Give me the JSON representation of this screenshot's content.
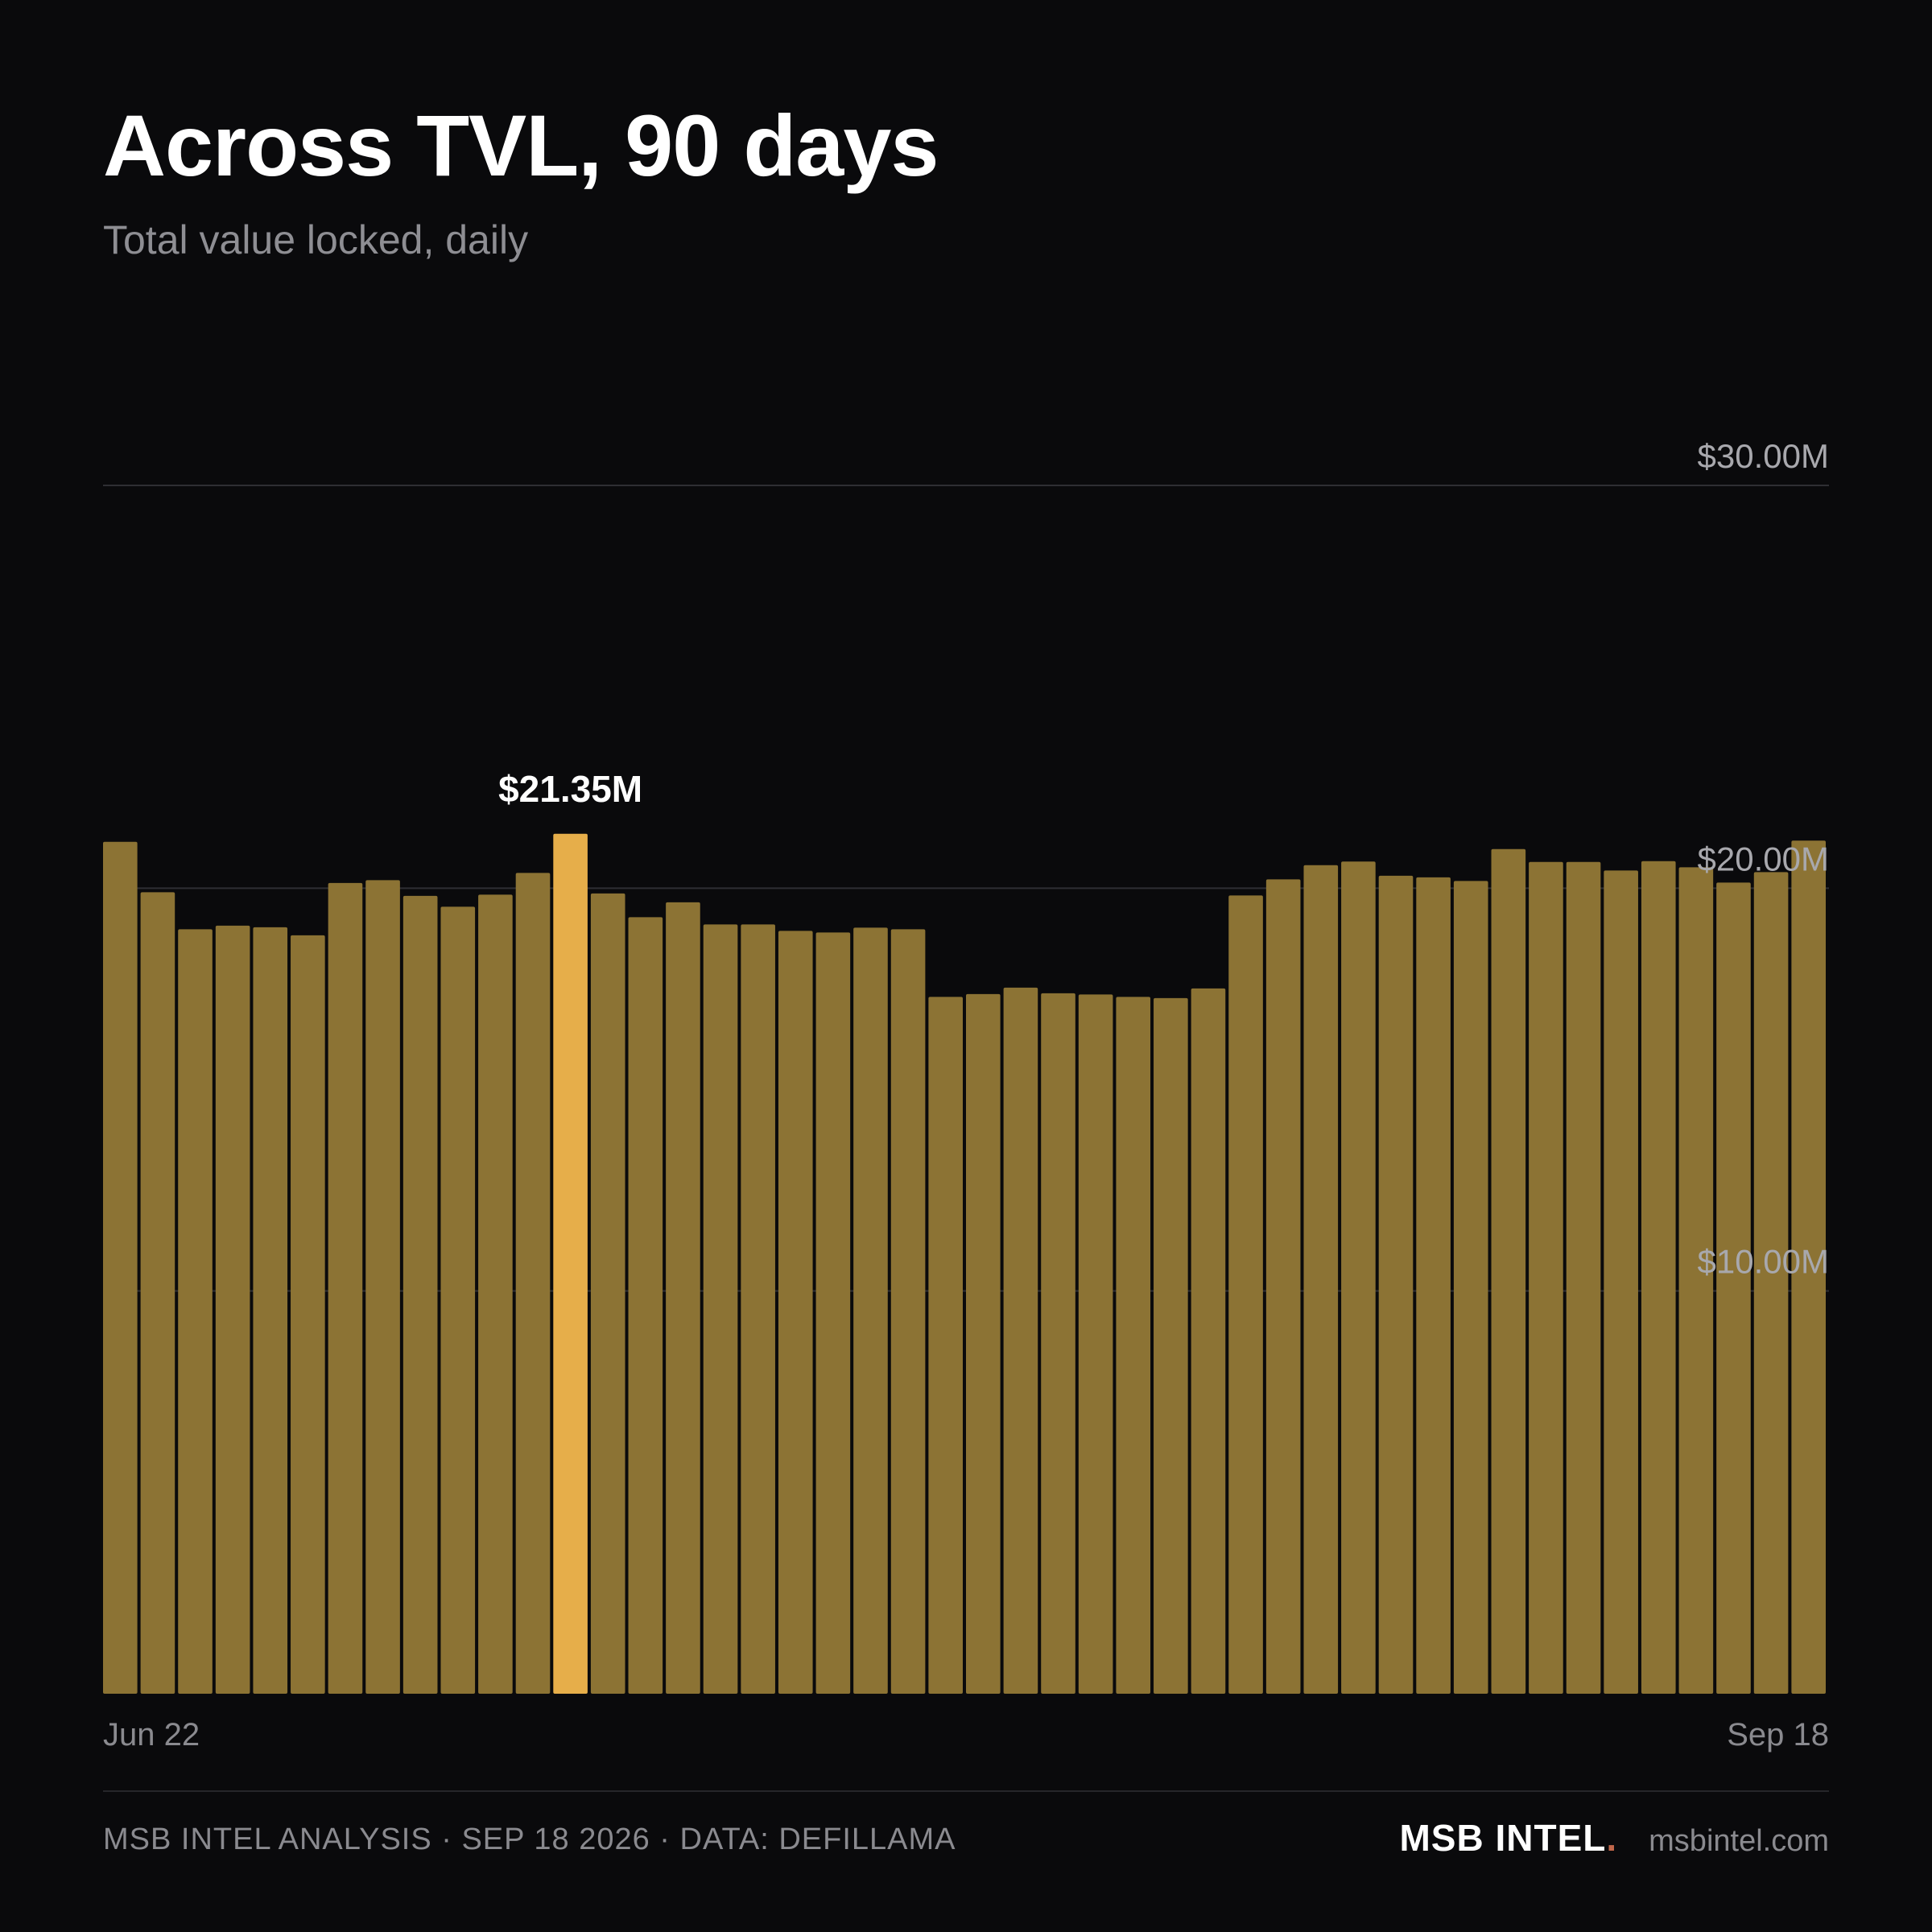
{
  "header": {
    "title": "Across TVL, 90 days",
    "subtitle": "Total value locked, daily"
  },
  "footer": {
    "source_line": "MSB INTEL ANALYSIS · SEP 18 2026 · DATA: DEFILLAMA",
    "brand": "MSB INTEL",
    "brand_dot": ".",
    "site": "msbintel.com"
  },
  "colors": {
    "background": "#0a0a0c",
    "bar": "#8c7334",
    "bar_highlight": "#e6ae4a",
    "brand_dot": "#c0664a"
  },
  "chart_data": {
    "type": "bar",
    "title": "Across TVL, 90 days",
    "subtitle": "Total value locked, daily",
    "x_start_label": "Jun 22",
    "x_end_label": "Sep 18",
    "ylim": [
      0,
      30
    ],
    "yticks": [
      10,
      20,
      30
    ],
    "ytick_labels": [
      "$10.00M",
      "$20.00M",
      "$30.00M"
    ],
    "grid": true,
    "values": [
      21.15,
      19.9,
      18.98,
      19.07,
      19.03,
      18.83,
      20.13,
      20.2,
      19.81,
      19.54,
      19.84,
      20.38,
      21.35,
      19.87,
      19.28,
      19.65,
      19.1,
      19.1,
      18.94,
      18.9,
      19.02,
      18.98,
      17.3,
      17.37,
      17.53,
      17.39,
      17.36,
      17.3,
      17.27,
      17.51,
      19.82,
      20.22,
      20.57,
      20.66,
      20.31,
      20.27,
      20.18,
      20.97,
      20.65,
      20.65,
      20.44,
      20.67,
      20.52,
      20.14,
      20.4,
      21.18
    ],
    "highlight_index": 12,
    "highlight_label": "$21.35M"
  }
}
